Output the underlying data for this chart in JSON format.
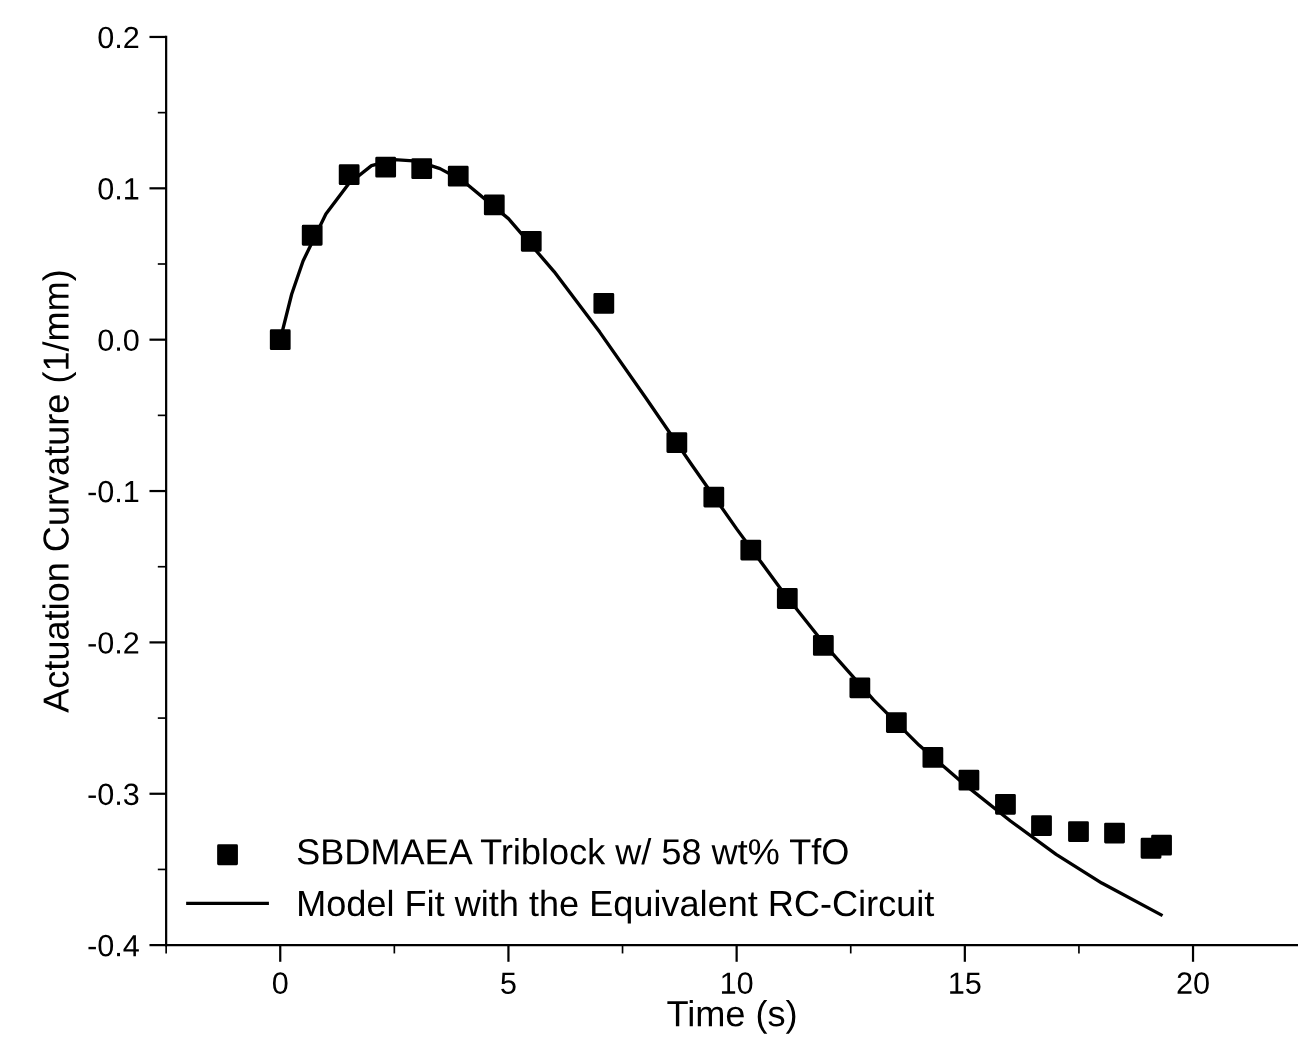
{
  "chart_data": {
    "type": "scatter",
    "xlabel": "Time (s)",
    "ylabel": "Actuation Curvature (1/mm)",
    "xlim": [
      -2.5,
      22.3
    ],
    "ylim": [
      -0.4,
      0.2
    ],
    "xticks": [
      0,
      5,
      10,
      15,
      20
    ],
    "yticks": [
      {
        "value": -0.4,
        "label": "-0.4"
      },
      {
        "value": -0.3,
        "label": "-0.3"
      },
      {
        "value": -0.2,
        "label": "-0.2"
      },
      {
        "value": -0.1,
        "label": "-0.1"
      },
      {
        "value": 0,
        "label": "0.0"
      },
      {
        "value": 0.1,
        "label": "0.1"
      },
      {
        "value": 0.2,
        "label": "0.2"
      }
    ],
    "grid": false,
    "legend": "bottom left",
    "series": [
      {
        "name": "SBDMAEA Triblock w/ 58 wt% TfO",
        "marker": "square",
        "color": "#000000",
        "x": [
          0,
          0.7,
          1.51,
          2.31,
          3.1,
          3.9,
          4.69,
          5.5,
          7.09,
          8.69,
          9.5,
          10.31,
          11.11,
          11.9,
          12.7,
          13.5,
          14.3,
          15.09,
          15.89,
          16.68,
          17.49,
          18.28,
          19.08,
          19.31
        ],
        "values": [
          0,
          0.069,
          0.109,
          0.114,
          0.113,
          0.108,
          0.089,
          0.065,
          0.024,
          -0.068,
          -0.104,
          -0.139,
          -0.171,
          -0.202,
          -0.23,
          -0.253,
          -0.276,
          -0.291,
          -0.307,
          -0.321,
          -0.325,
          -0.326,
          -0.336,
          -0.334
        ]
      },
      {
        "name": "Model Fit with the Equivalent RC-Circuit",
        "type": "line",
        "line_style": "solid",
        "color": "#000000",
        "x": [
          0,
          0.25,
          0.5,
          1,
          1.5,
          2,
          2.5,
          3,
          3.5,
          4,
          5,
          6,
          7,
          8,
          9,
          10,
          11,
          12,
          13,
          14,
          15,
          16,
          17,
          18,
          19.3
        ],
        "values": [
          0,
          0.03,
          0.052,
          0.083,
          0.103,
          0.115,
          0.119,
          0.118,
          0.113,
          0.105,
          0.08,
          0.045,
          0.005,
          -0.038,
          -0.082,
          -0.125,
          -0.166,
          -0.204,
          -0.238,
          -0.268,
          -0.294,
          -0.318,
          -0.34,
          -0.359,
          -0.38
        ]
      }
    ]
  }
}
